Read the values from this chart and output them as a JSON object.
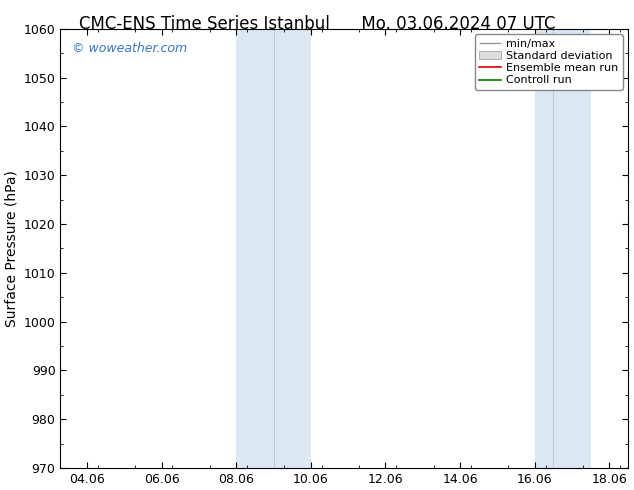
{
  "title_left": "CMC-ENS Time Series Istanbul",
  "title_right": "Mo. 03.06.2024 07 UTC",
  "ylabel": "Surface Pressure (hPa)",
  "ylim": [
    970,
    1060
  ],
  "yticks": [
    970,
    980,
    990,
    1000,
    1010,
    1020,
    1030,
    1040,
    1050,
    1060
  ],
  "xtick_labels": [
    "04.06",
    "06.06",
    "08.06",
    "10.06",
    "12.06",
    "14.06",
    "16.06",
    "18.06"
  ],
  "shaded_color": "#dce9f5",
  "watermark_text": "© woweather.com",
  "watermark_color": "#3377cc",
  "legend_labels": [
    "min/max",
    "Standard deviation",
    "Ensemble mean run",
    "Controll run"
  ],
  "legend_colors_line": [
    "#999999",
    "#cccccc",
    "#dd0000",
    "#007700"
  ],
  "background_color": "#ffffff",
  "title_fontsize": 12,
  "axis_label_fontsize": 10,
  "tick_fontsize": 9,
  "legend_fontsize": 8
}
